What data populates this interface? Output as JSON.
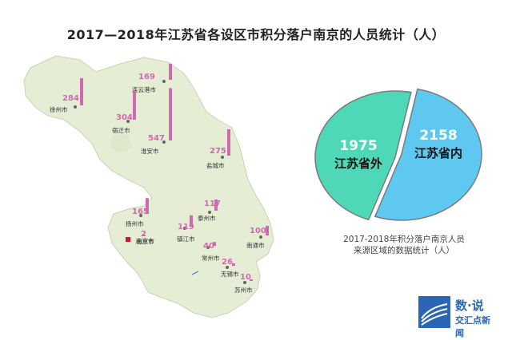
{
  "title": "2017—2018年江苏省各设区市积分落户南京的人员统计（人）",
  "chart_data": [
    {
      "type": "bar",
      "subtitle": "",
      "categories": [
        "徐州市",
        "连云港市",
        "宿迁市",
        "淮安市",
        "盐城市",
        "扬州市",
        "泰州市",
        "镇江市",
        "南京市",
        "常州市",
        "南通市",
        "无锡市",
        "苏州市"
      ],
      "values": [
        284,
        169,
        304,
        547,
        275,
        165,
        117,
        119,
        2,
        40,
        100,
        26,
        10
      ],
      "highlight_city": "南京市"
    },
    {
      "type": "pie",
      "labels": [
        "江苏省外",
        "江苏省内"
      ],
      "values": [
        1975,
        2158
      ],
      "caption_lines": [
        "2017-2018年积分落户南京人员",
        "来源区域的数据统计（人）"
      ]
    }
  ],
  "colors": {
    "map_fill": "#e6edd5",
    "map_stroke": "#ffffff",
    "bar": "#d06ab0",
    "pie_outside": "#4fd8b8",
    "pie_inside": "#5ec8f0",
    "nanjing_marker": "#d7142b",
    "logo": "#2b66b4"
  },
  "logo": {
    "line1": "数·说",
    "line2": "交汇点新闻"
  }
}
